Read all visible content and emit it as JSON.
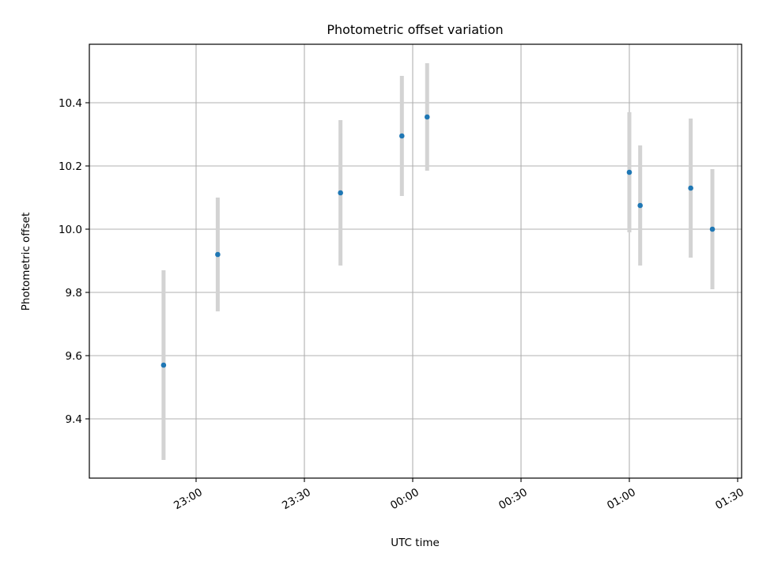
{
  "chart_data": {
    "type": "scatter",
    "title": "Photometric offset variation",
    "xlabel": "UTC time",
    "ylabel": "Photometric offset",
    "x_axis": {
      "kind": "time",
      "ticks": [
        "23:00",
        "23:30",
        "00:00",
        "00:30",
        "01:00",
        "01:30"
      ]
    },
    "ylim": [
      9.22,
      10.58
    ],
    "yticks": [
      9.4,
      9.6,
      9.8,
      10.0,
      10.2,
      10.4
    ],
    "grid": true,
    "series": [
      {
        "marker_color": "#1f77b4",
        "errorbar_color": "#d3d3d3",
        "points": [
          {
            "x": "22:51",
            "y": 9.57,
            "yerr": 0.3
          },
          {
            "x": "23:06",
            "y": 9.92,
            "yerr": 0.18
          },
          {
            "x": "23:40",
            "y": 10.115,
            "yerr": 0.23
          },
          {
            "x": "23:57",
            "y": 10.295,
            "yerr": 0.19
          },
          {
            "x": "00:04",
            "y": 10.355,
            "yerr": 0.17
          },
          {
            "x": "01:00",
            "y": 10.18,
            "yerr": 0.19
          },
          {
            "x": "01:03",
            "y": 10.075,
            "yerr": 0.19
          },
          {
            "x": "01:17",
            "y": 10.13,
            "yerr": 0.22
          },
          {
            "x": "01:23",
            "y": 10.0,
            "yerr": 0.19
          }
        ]
      }
    ]
  }
}
